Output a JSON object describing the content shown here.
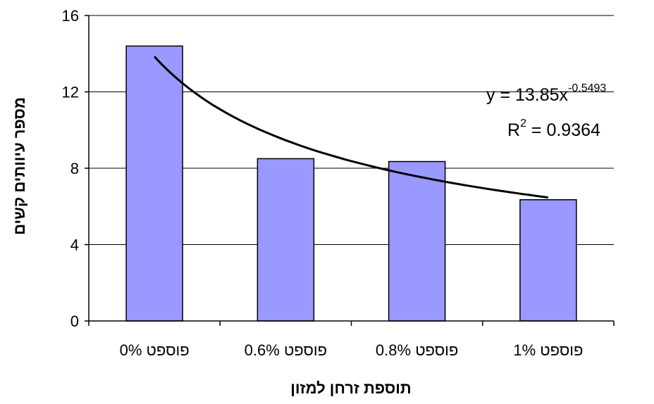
{
  "chart_data": {
    "type": "bar",
    "title": "",
    "xlabel": "תוספת זרחן למזון",
    "ylabel": "מספר עיוותים קשים",
    "categories": [
      "פוספט 0%",
      "פוספט 0.6%",
      "פוספט 0.8%",
      "פוספט 1%"
    ],
    "values": [
      14.4,
      8.5,
      8.35,
      6.35
    ],
    "ylim": [
      0,
      16
    ],
    "yticks": [
      0,
      4,
      8,
      12,
      16
    ],
    "ytick_labels": [
      "0",
      "4",
      "8",
      "12",
      "16"
    ],
    "grid": true,
    "legend": "none",
    "bar_color": "#9999ff",
    "trendline": {
      "type": "power",
      "coefficient": 13.85,
      "exponent": -0.5493,
      "equation_prefix": "y = 13.85x",
      "equation_exponent": "-0.5493",
      "r2_base": "R",
      "r2_sup": "2",
      "r2_value": " = 0.9364"
    }
  }
}
